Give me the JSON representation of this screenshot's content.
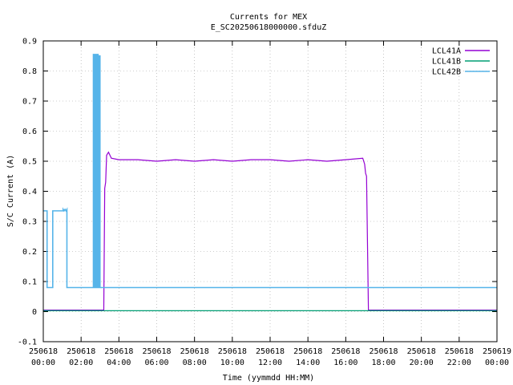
{
  "chart_data": {
    "type": "line",
    "title": "Currents for MEX",
    "subtitle": "E_SC20250618000000.sfduZ",
    "xlabel": "Time (yymmdd HH:MM)",
    "ylabel": "S/C Current (A)",
    "xlim": [
      0,
      24
    ],
    "ylim": [
      -0.1,
      0.9
    ],
    "grid": true,
    "legend_position": "top-right",
    "x_ticks": [
      {
        "value": 0,
        "date": "250618",
        "time": "00:00"
      },
      {
        "value": 2,
        "date": "250618",
        "time": "02:00"
      },
      {
        "value": 4,
        "date": "250618",
        "time": "04:00"
      },
      {
        "value": 6,
        "date": "250618",
        "time": "06:00"
      },
      {
        "value": 8,
        "date": "250618",
        "time": "08:00"
      },
      {
        "value": 10,
        "date": "250618",
        "time": "10:00"
      },
      {
        "value": 12,
        "date": "250618",
        "time": "12:00"
      },
      {
        "value": 14,
        "date": "250618",
        "time": "14:00"
      },
      {
        "value": 16,
        "date": "250618",
        "time": "16:00"
      },
      {
        "value": 18,
        "date": "250618",
        "time": "18:00"
      },
      {
        "value": 20,
        "date": "250618",
        "time": "20:00"
      },
      {
        "value": 22,
        "date": "250618",
        "time": "22:00"
      },
      {
        "value": 24,
        "date": "250619",
        "time": "00:00"
      }
    ],
    "y_ticks": [
      -0.1,
      0,
      0.1,
      0.2,
      0.3,
      0.4,
      0.5,
      0.6,
      0.7,
      0.8,
      0.9
    ],
    "series": [
      {
        "name": "LCL41A",
        "color": "#9400d3",
        "x": [
          0,
          3.2,
          3.25,
          3.3,
          3.35,
          3.45,
          3.6,
          4,
          5,
          6,
          7,
          8,
          9,
          10,
          11,
          12,
          13,
          14,
          15,
          16,
          16.9,
          17.0,
          17.05,
          17.1,
          17.2,
          24
        ],
        "y": [
          0.005,
          0.005,
          0.41,
          0.43,
          0.52,
          0.53,
          0.51,
          0.505,
          0.505,
          0.5,
          0.505,
          0.5,
          0.505,
          0.5,
          0.505,
          0.505,
          0.5,
          0.505,
          0.5,
          0.505,
          0.51,
          0.49,
          0.46,
          0.45,
          0.005,
          0.005
        ]
      },
      {
        "name": "LCL41B",
        "color": "#009e73",
        "x": [
          0,
          24
        ],
        "y": [
          0.003,
          0.003
        ]
      },
      {
        "name": "LCL42B",
        "color": "#56b4e9",
        "x": [
          0,
          0.2,
          0.2,
          0.5,
          0.5,
          1.05,
          1.05,
          1.1,
          1.15,
          1.2,
          1.25,
          1.25,
          2.65,
          2.65,
          2.7,
          2.7,
          2.75,
          2.75,
          2.8,
          2.8,
          2.85,
          2.85,
          2.9,
          2.9,
          2.95,
          2.95,
          3.0,
          3.0,
          24
        ],
        "y": [
          0.335,
          0.335,
          0.08,
          0.08,
          0.335,
          0.335,
          0.34,
          0.335,
          0.34,
          0.335,
          0.34,
          0.08,
          0.08,
          0.855,
          0.855,
          0.08,
          0.08,
          0.855,
          0.855,
          0.08,
          0.08,
          0.855,
          0.855,
          0.08,
          0.08,
          0.85,
          0.85,
          0.08,
          0.08
        ]
      }
    ]
  }
}
